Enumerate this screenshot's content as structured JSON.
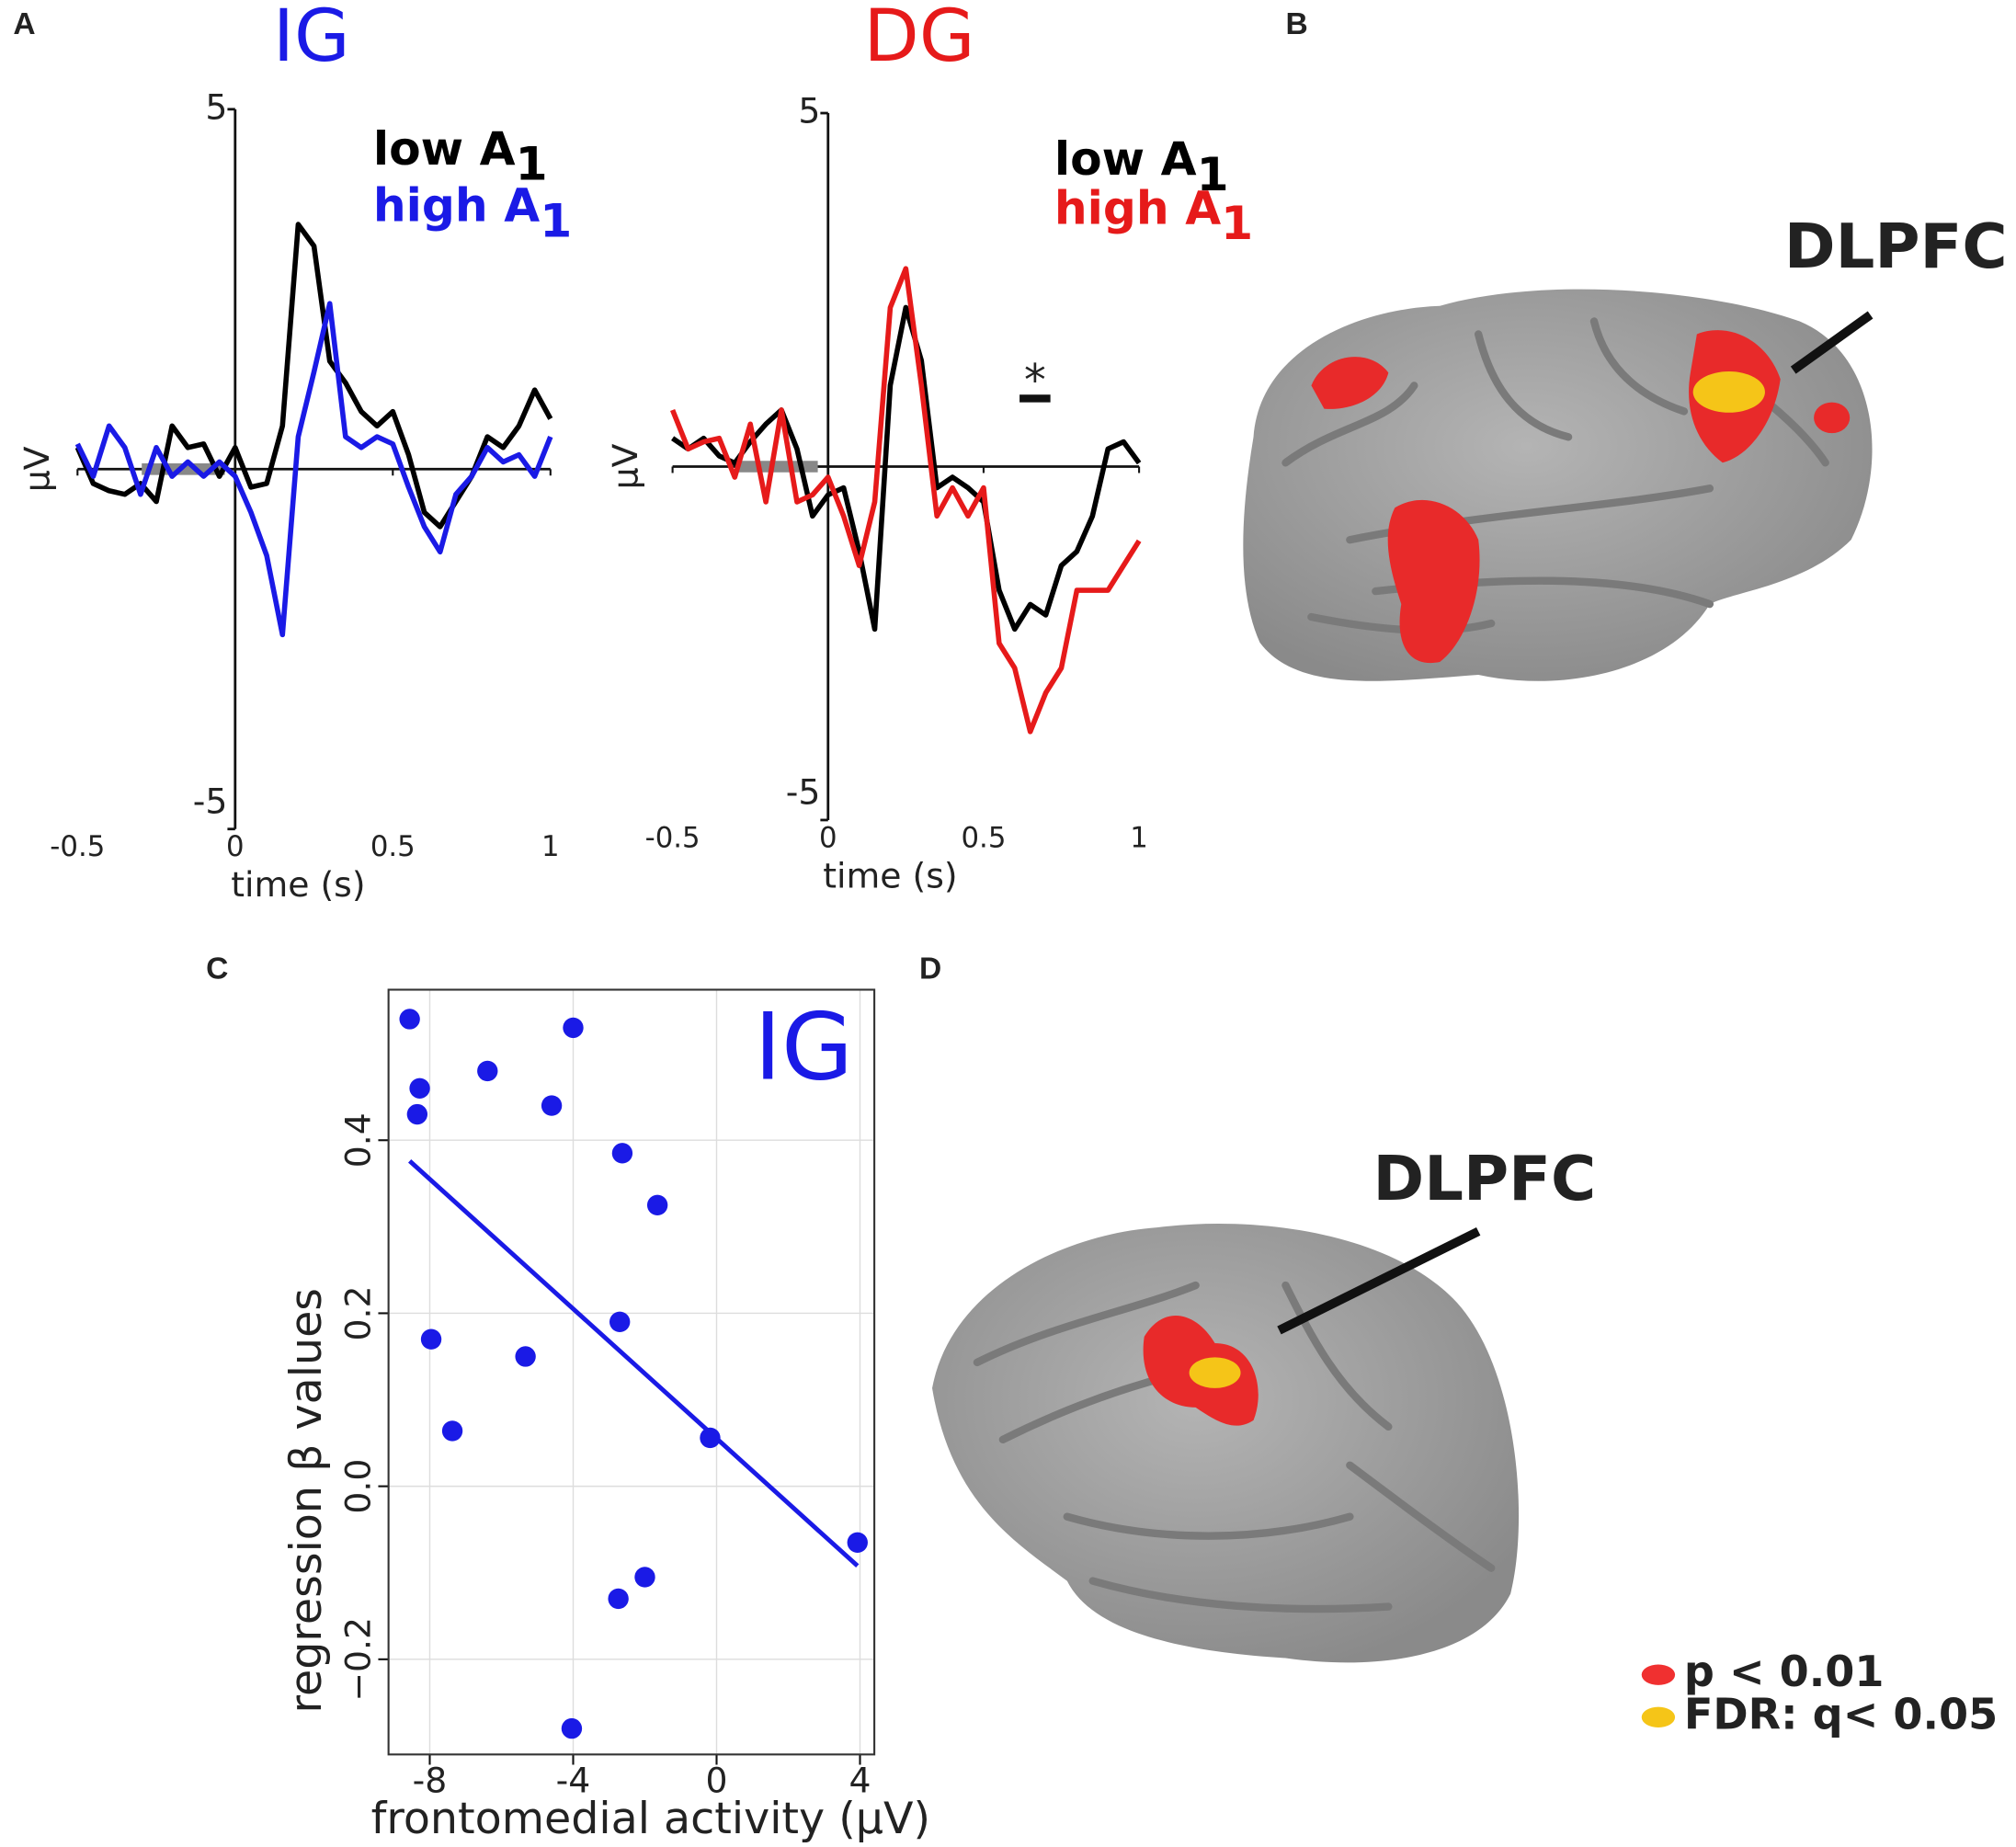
{
  "panel_labels": [
    "A",
    "B",
    "C",
    "D"
  ],
  "chart_data": [
    {
      "type": "line",
      "title": "IG",
      "title_color": "#1a1ae6",
      "xlabel": "time (s)",
      "ylabel": "µV",
      "xlim": [
        -0.5,
        1
      ],
      "xticks": [
        -0.5,
        0,
        0.5,
        1
      ],
      "ylim": [
        -5,
        5
      ],
      "yticks": [
        -5,
        5
      ],
      "x": [
        -0.5,
        -0.45,
        -0.4,
        -0.35,
        -0.3,
        -0.25,
        -0.2,
        -0.15,
        -0.1,
        -0.05,
        0,
        0.05,
        0.1,
        0.15,
        0.2,
        0.25,
        0.3,
        0.35,
        0.4,
        0.45,
        0.5,
        0.55,
        0.6,
        0.65,
        0.7,
        0.75,
        0.8,
        0.85,
        0.9,
        0.95,
        1
      ],
      "series": [
        {
          "name": "low A",
          "name_subscript": "1",
          "color": "#000000",
          "values": [
            0.3,
            -0.2,
            -0.3,
            -0.35,
            -0.2,
            -0.45,
            0.6,
            0.3,
            0.35,
            -0.1,
            0.3,
            -0.25,
            -0.2,
            0.6,
            3.4,
            3.1,
            1.5,
            1.2,
            0.8,
            0.6,
            0.8,
            0.2,
            -0.6,
            -0.8,
            -0.45,
            -0.1,
            0.45,
            0.3,
            0.6,
            1.1,
            0.7
          ]
        },
        {
          "name": "high A",
          "name_subscript": "1",
          "color": "#1a1ae6",
          "values": [
            0.35,
            -0.1,
            0.6,
            0.3,
            -0.35,
            0.3,
            -0.1,
            0.1,
            -0.1,
            0.1,
            -0.1,
            -0.6,
            -1.2,
            -2.3,
            0.45,
            1.35,
            2.3,
            0.45,
            0.3,
            0.45,
            0.35,
            -0.25,
            -0.8,
            -1.15,
            -0.35,
            -0.1,
            0.3,
            0.1,
            0.2,
            -0.1,
            0.45
          ]
        }
      ]
    },
    {
      "type": "line",
      "title": "DG",
      "title_color": "#e61a1a",
      "xlabel": "time (s)",
      "ylabel": "µV",
      "xlim": [
        -0.5,
        1
      ],
      "xticks": [
        -0.5,
        0,
        0.5,
        1
      ],
      "ylim": [
        -5,
        5
      ],
      "yticks": [
        -5,
        5
      ],
      "annotation": "*",
      "x": [
        -0.5,
        -0.45,
        -0.4,
        -0.35,
        -0.3,
        -0.25,
        -0.2,
        -0.15,
        -0.1,
        -0.05,
        0,
        0.05,
        0.1,
        0.15,
        0.2,
        0.25,
        0.3,
        0.35,
        0.4,
        0.45,
        0.5,
        0.55,
        0.6,
        0.65,
        0.7,
        0.75,
        0.8,
        0.85,
        0.9,
        0.95,
        1
      ],
      "series": [
        {
          "name": "low A",
          "name_subscript": "1",
          "color": "#000000",
          "values": [
            0.4,
            0.25,
            0.4,
            0.15,
            0.05,
            0.35,
            0.6,
            0.8,
            0.25,
            -0.7,
            -0.4,
            -0.3,
            -1.2,
            -2.3,
            1.15,
            2.25,
            1.5,
            -0.3,
            -0.15,
            -0.3,
            -0.5,
            -1.75,
            -2.3,
            -1.95,
            -2.1,
            -1.4,
            -1.2,
            -0.7,
            0.25,
            0.35,
            0.05
          ]
        },
        {
          "name": "high A",
          "name_subscript": "1",
          "color": "#e61a1a",
          "values": [
            0.8,
            0.25,
            0.35,
            0.4,
            -0.15,
            0.6,
            -0.5,
            0.8,
            -0.5,
            -0.4,
            -0.15,
            -0.7,
            -1.4,
            -0.5,
            2.25,
            2.8,
            1.15,
            -0.7,
            -0.3,
            -0.7,
            -0.3,
            -2.5,
            -2.85,
            -3.75,
            -3.2,
            -2.85,
            -1.75,
            -1.75,
            -1.75,
            -1.4,
            -1.05
          ]
        }
      ]
    },
    {
      "type": "scatter",
      "annotation": "IG",
      "color": "#1a1ae6",
      "xlabel": "frontomedial activity (µV)",
      "ylabel": "regression β values",
      "xlim": [
        -9.15,
        4.4
      ],
      "xticks": [
        -8,
        -4,
        0,
        4
      ],
      "ylim": [
        -0.31,
        0.574
      ],
      "yticks": [
        {
          "value": -0.2,
          "label": "−0.2"
        },
        {
          "value": 0,
          "label": "0.0"
        },
        {
          "value": 0.2,
          "label": "0.2"
        },
        {
          "value": 0.4,
          "label": "0.4"
        }
      ],
      "grid": true,
      "x": [
        -8.56,
        -8.28,
        -8.35,
        -6.39,
        -4.0,
        -4.6,
        -2.63,
        -1.65,
        -2.7,
        -7.96,
        -5.33,
        -7.37,
        -0.18,
        3.93,
        -2.0,
        -2.74,
        -4.04
      ],
      "values": [
        0.54,
        0.46,
        0.43,
        0.48,
        0.53,
        0.44,
        0.385,
        0.325,
        0.19,
        0.17,
        0.15,
        0.064,
        0.056,
        -0.065,
        -0.105,
        -0.13,
        -0.28
      ],
      "fit_line": {
        "x": [
          -8.56,
          3.93
        ],
        "values": [
          0.376,
          -0.092
        ]
      }
    }
  ],
  "brain_b": {
    "label": "DLPFC"
  },
  "brain_d": {
    "label": "DLPFC"
  },
  "legend": [
    {
      "label": "p < 0.01",
      "color": "#f03030"
    },
    {
      "label": "FDR: q< 0.05",
      "color": "#f5c518"
    }
  ]
}
